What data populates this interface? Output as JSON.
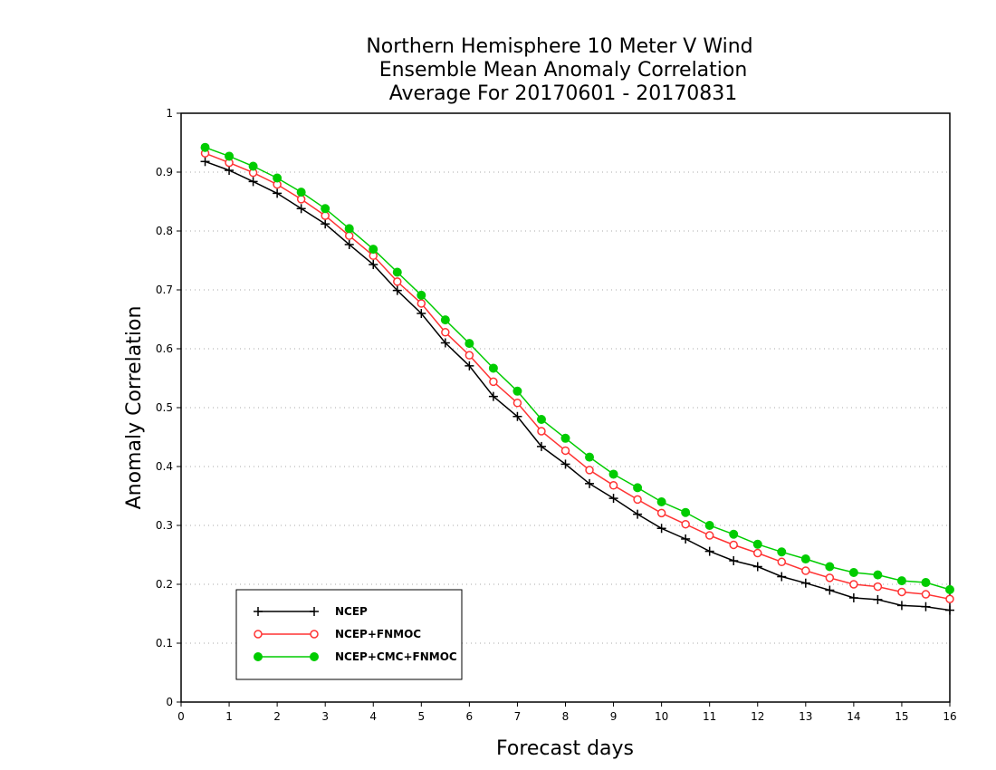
{
  "chart_data": {
    "type": "line",
    "title": [
      "Northern Hemisphere 10 Meter V Wind",
      "Ensemble Mean Anomaly Correlation",
      "Average For 20170601 - 20170831"
    ],
    "xlabel": "Forecast days",
    "ylabel": "Anomaly Correlation",
    "xlim": [
      0,
      16
    ],
    "ylim": [
      0,
      1
    ],
    "x_ticks": [
      "0",
      "1",
      "2",
      "3",
      "4",
      "5",
      "6",
      "7",
      "8",
      "9",
      "10",
      "11",
      "12",
      "13",
      "14",
      "15",
      "16"
    ],
    "y_ticks": [
      "0",
      "0.1",
      "0.2",
      "0.3",
      "0.4",
      "0.5",
      "0.6",
      "0.7",
      "0.8",
      "0.9",
      "1"
    ],
    "grid": "horizontal-dotted",
    "legend_position": "bottom-left",
    "x": [
      0.5,
      1,
      1.5,
      2,
      2.5,
      3,
      3.5,
      4,
      4.5,
      5,
      5.5,
      6,
      6.5,
      7,
      7.5,
      8,
      8.5,
      9,
      9.5,
      10,
      10.5,
      11,
      11.5,
      12,
      12.5,
      13,
      13.5,
      14,
      14.5,
      15,
      15.5,
      16
    ],
    "series": [
      {
        "name": "NCEP",
        "color": "#000000",
        "marker": "plus",
        "values": [
          0.918,
          0.903,
          0.884,
          0.864,
          0.838,
          0.812,
          0.777,
          0.743,
          0.699,
          0.66,
          0.61,
          0.571,
          0.519,
          0.485,
          0.434,
          0.404,
          0.371,
          0.346,
          0.319,
          0.295,
          0.277,
          0.256,
          0.24,
          0.23,
          0.213,
          0.202,
          0.19,
          0.177,
          0.174,
          0.164,
          0.162,
          0.156
        ]
      },
      {
        "name": "NCEP+FNMOC",
        "color": "#ff3333",
        "marker": "open-circle",
        "values": [
          0.932,
          0.916,
          0.899,
          0.879,
          0.854,
          0.826,
          0.792,
          0.758,
          0.714,
          0.677,
          0.628,
          0.589,
          0.544,
          0.508,
          0.46,
          0.427,
          0.394,
          0.368,
          0.344,
          0.321,
          0.302,
          0.283,
          0.267,
          0.253,
          0.238,
          0.223,
          0.211,
          0.2,
          0.196,
          0.187,
          0.183,
          0.175
        ]
      },
      {
        "name": "NCEP+CMC+FNMOC",
        "color": "#00cc00",
        "marker": "filled-circle",
        "values": [
          0.942,
          0.927,
          0.91,
          0.89,
          0.866,
          0.838,
          0.804,
          0.769,
          0.73,
          0.691,
          0.649,
          0.609,
          0.567,
          0.528,
          0.48,
          0.448,
          0.416,
          0.387,
          0.364,
          0.34,
          0.322,
          0.3,
          0.285,
          0.268,
          0.255,
          0.243,
          0.23,
          0.22,
          0.216,
          0.206,
          0.203,
          0.191
        ]
      }
    ]
  }
}
